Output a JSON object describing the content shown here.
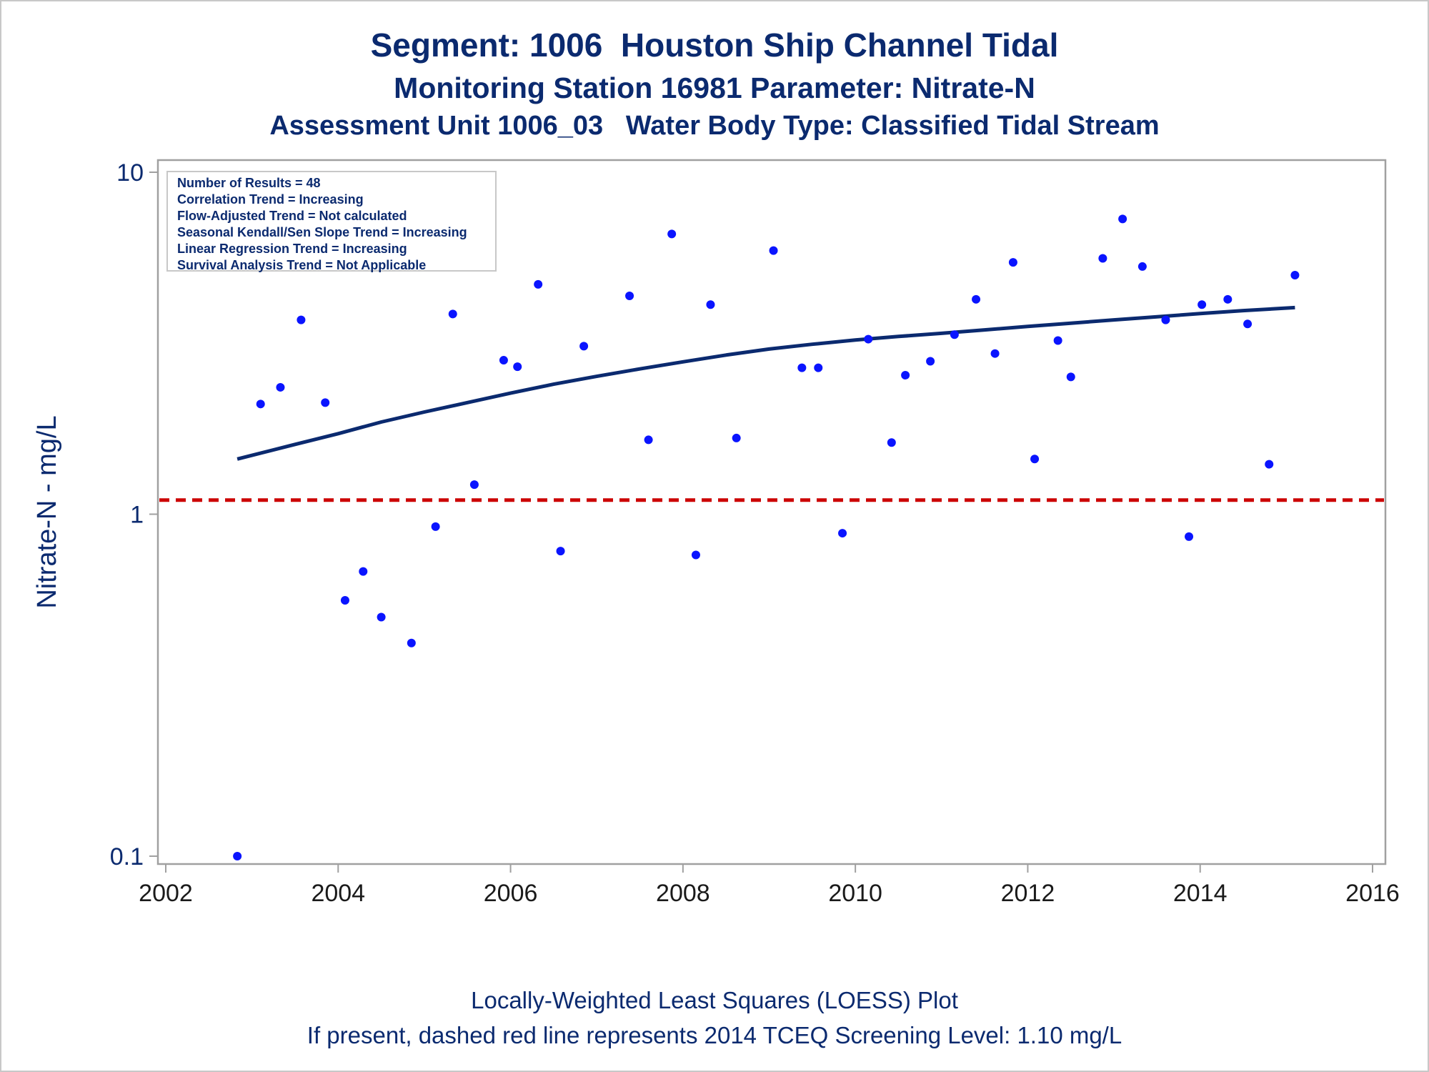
{
  "colors": {
    "text": "#0b2a6f",
    "points": "#0a14ff",
    "loess": "#0b2a6f",
    "screening_line": "#cc0000",
    "frame": "#a0a0a0"
  },
  "titles": {
    "line1": "Segment: 1006  Houston Ship Channel Tidal",
    "line2": "Monitoring Station 16981 Parameter: Nitrate-N",
    "line3": "Assessment Unit 1006_03   Water Body Type: Classified Tidal Stream"
  },
  "footnotes": {
    "line1": "Locally-Weighted Least Squares (LOESS) Plot",
    "line2": "If present, dashed red line represents 2014 TCEQ Screening Level: 1.10 mg/L"
  },
  "info_box": [
    "Number of Results = 48",
    "Correlation Trend = Increasing",
    "Flow-Adjusted Trend = Not calculated",
    "Seasonal Kendall/Sen Slope Trend = Increasing",
    "Linear Regression Trend = Increasing",
    "Survival Analysis Trend = Not Applicable"
  ],
  "chart_data": {
    "type": "scatter",
    "ylabel": "Nitrate-N - mg/L",
    "xlabel": "",
    "yscale": "log",
    "xlim": [
      2002,
      2016
    ],
    "ylim": [
      0.1,
      10
    ],
    "x_ticks": [
      "2002",
      "2004",
      "2006",
      "2008",
      "2010",
      "2012",
      "2014",
      "2016"
    ],
    "y_ticks": [
      "0.1",
      "1",
      "10"
    ],
    "screening_level": 1.1,
    "series": [
      {
        "type": "scatter",
        "points": [
          [
            2002.83,
            0.1
          ],
          [
            2003.1,
            2.1
          ],
          [
            2003.33,
            2.35
          ],
          [
            2003.57,
            3.7
          ],
          [
            2003.85,
            2.12
          ],
          [
            2004.08,
            0.56
          ],
          [
            2004.29,
            0.68
          ],
          [
            2004.5,
            0.5
          ],
          [
            2004.85,
            0.42
          ],
          [
            2005.13,
            0.92
          ],
          [
            2005.33,
            3.85
          ],
          [
            2005.58,
            1.22
          ],
          [
            2005.92,
            2.82
          ],
          [
            2006.08,
            2.7
          ],
          [
            2006.32,
            4.7
          ],
          [
            2006.58,
            0.78
          ],
          [
            2006.85,
            3.1
          ],
          [
            2007.38,
            4.35
          ],
          [
            2007.6,
            1.65
          ],
          [
            2007.87,
            6.6
          ],
          [
            2008.15,
            0.76
          ],
          [
            2008.32,
            4.1
          ],
          [
            2008.62,
            1.67
          ],
          [
            2009.05,
            5.9
          ],
          [
            2009.38,
            2.68
          ],
          [
            2009.57,
            2.68
          ],
          [
            2009.85,
            0.88
          ],
          [
            2010.15,
            3.25
          ],
          [
            2010.42,
            1.62
          ],
          [
            2010.58,
            2.55
          ],
          [
            2010.87,
            2.8
          ],
          [
            2011.15,
            3.35
          ],
          [
            2011.4,
            4.25
          ],
          [
            2011.62,
            2.95
          ],
          [
            2011.83,
            5.45
          ],
          [
            2012.08,
            1.45
          ],
          [
            2012.35,
            3.22
          ],
          [
            2012.5,
            2.52
          ],
          [
            2012.87,
            5.6
          ],
          [
            2013.1,
            7.3
          ],
          [
            2013.33,
            5.3
          ],
          [
            2013.6,
            3.7
          ],
          [
            2013.87,
            0.86
          ],
          [
            2014.02,
            4.1
          ],
          [
            2014.32,
            4.25
          ],
          [
            2014.55,
            3.6
          ],
          [
            2014.8,
            1.4
          ],
          [
            2015.1,
            5.0
          ]
        ]
      },
      {
        "type": "line",
        "points": [
          [
            2002.83,
            1.45
          ],
          [
            2003.5,
            1.6
          ],
          [
            2004.0,
            1.72
          ],
          [
            2004.5,
            1.86
          ],
          [
            2005.0,
            1.99
          ],
          [
            2005.5,
            2.12
          ],
          [
            2006.0,
            2.26
          ],
          [
            2006.5,
            2.4
          ],
          [
            2007.0,
            2.53
          ],
          [
            2007.5,
            2.66
          ],
          [
            2008.0,
            2.79
          ],
          [
            2008.5,
            2.92
          ],
          [
            2009.0,
            3.04
          ],
          [
            2009.5,
            3.14
          ],
          [
            2010.0,
            3.23
          ],
          [
            2010.5,
            3.31
          ],
          [
            2011.0,
            3.38
          ],
          [
            2011.5,
            3.46
          ],
          [
            2012.0,
            3.54
          ],
          [
            2012.5,
            3.62
          ],
          [
            2013.0,
            3.7
          ],
          [
            2013.5,
            3.78
          ],
          [
            2014.0,
            3.86
          ],
          [
            2014.5,
            3.94
          ],
          [
            2015.1,
            4.02
          ]
        ]
      }
    ]
  }
}
